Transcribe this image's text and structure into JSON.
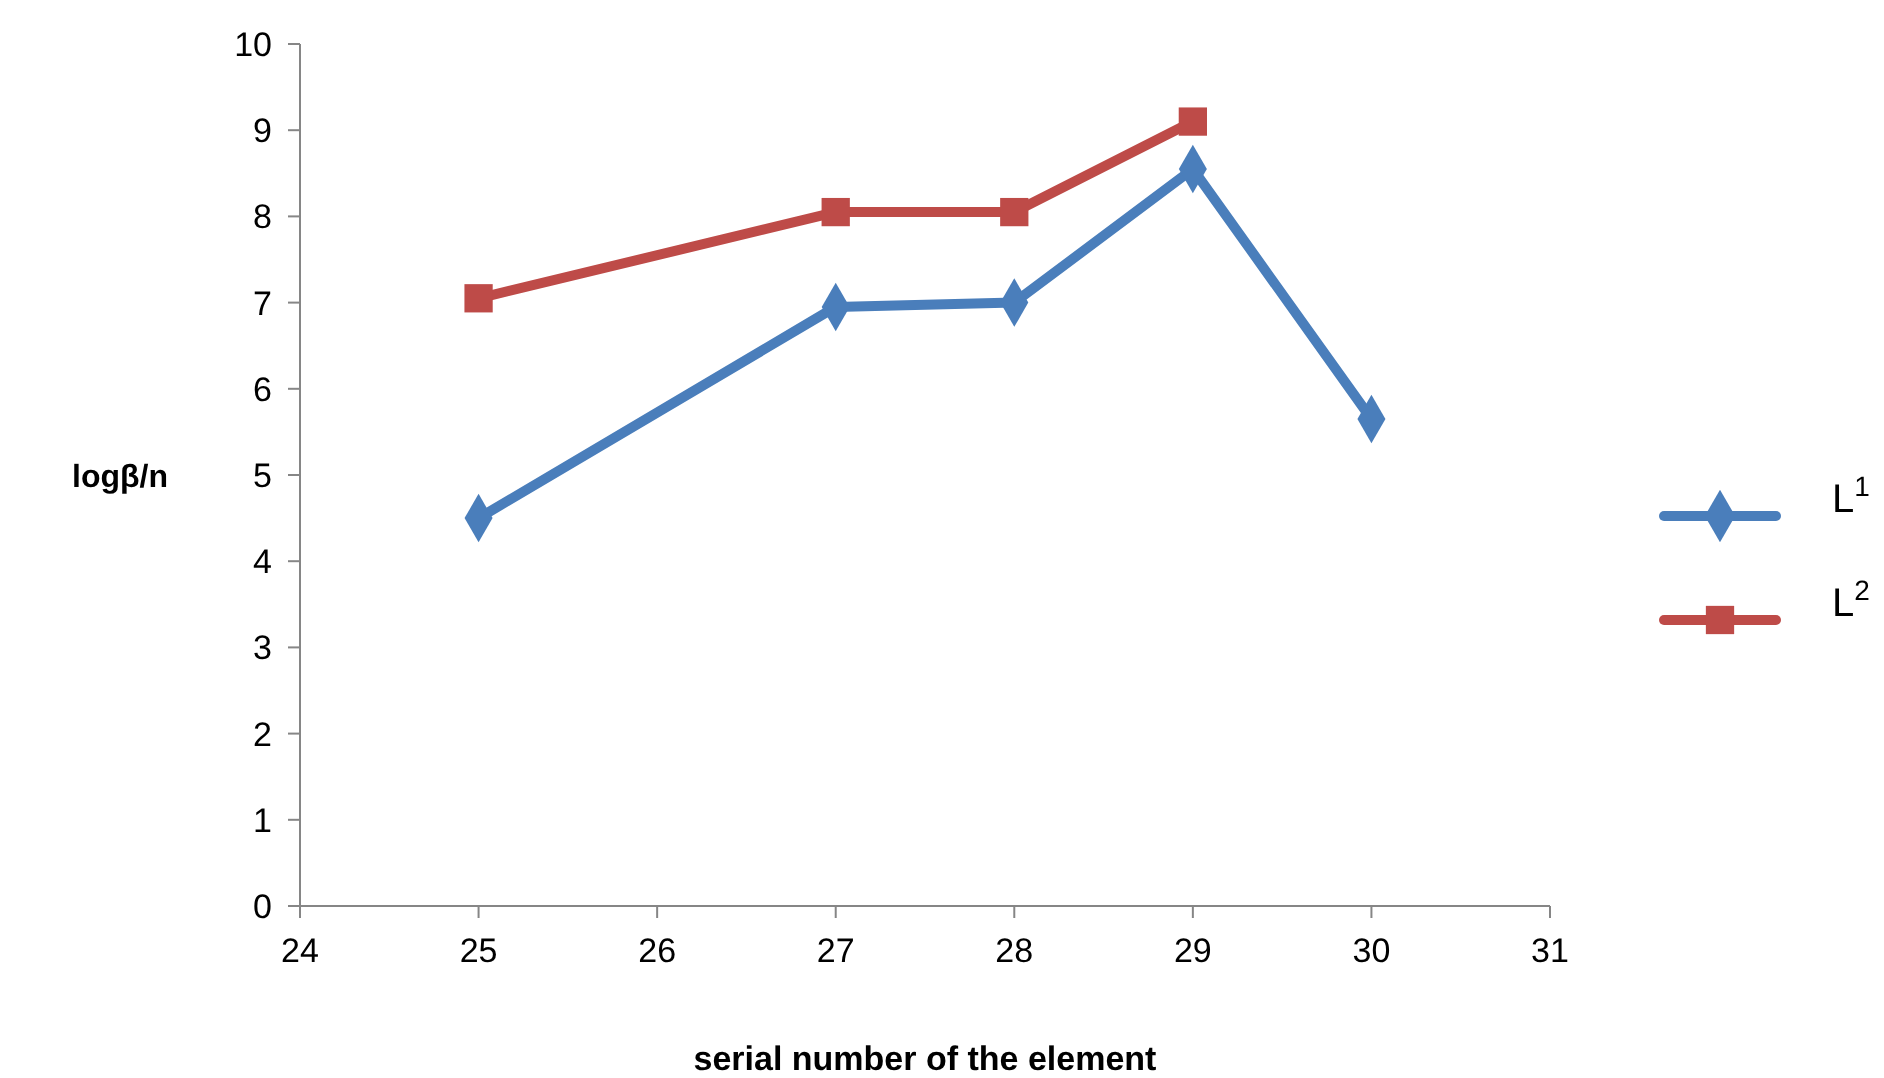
{
  "chart_data": {
    "type": "line",
    "xlabel": "serial number of the element",
    "ylabel": "logβ/n",
    "xlim": [
      24,
      31
    ],
    "xticks": [
      24,
      25,
      26,
      27,
      28,
      29,
      30,
      31
    ],
    "ylim": [
      0,
      10
    ],
    "yticks": [
      0,
      1,
      2,
      3,
      4,
      5,
      6,
      7,
      8,
      9,
      10
    ],
    "grid": false,
    "legend": "right",
    "line_style": "solid",
    "series": [
      {
        "name": "L$^{1}$",
        "color": "#4a7ebb",
        "marker": "diamond",
        "x": [
          25,
          27,
          28,
          29,
          30
        ],
        "values": [
          4.5,
          6.95,
          7.0,
          8.55,
          5.65
        ]
      },
      {
        "name": "L$^{2}$",
        "color": "#be4b48",
        "marker": "square",
        "x": [
          25,
          27,
          28,
          29
        ],
        "values": [
          7.05,
          8.05,
          8.05,
          9.1
        ]
      }
    ]
  }
}
